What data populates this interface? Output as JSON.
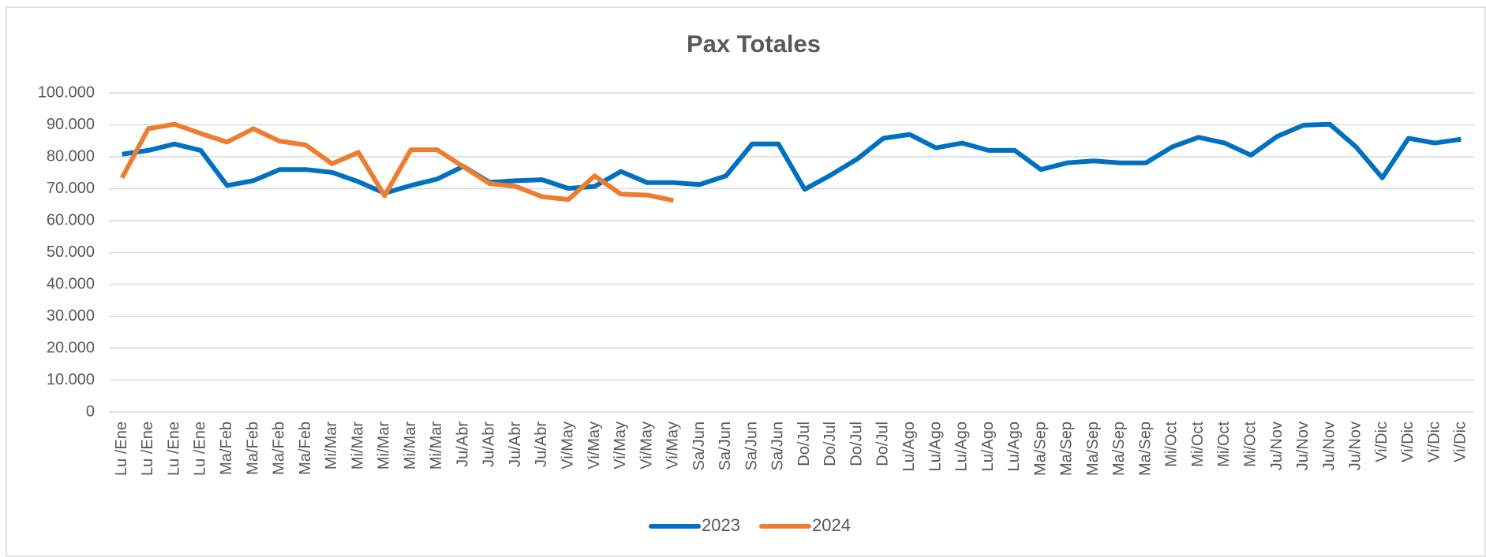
{
  "chart_data": {
    "type": "line",
    "title": "Pax Totales",
    "categories": [
      "Lu /Ene",
      "Lu /Ene",
      "Lu /Ene",
      "Lu /Ene",
      "Ma/Feb",
      "Ma/Feb",
      "Ma/Feb",
      "Ma/Feb",
      "Mi/Mar",
      "Mi/Mar",
      "Mi/Mar",
      "Mi/Mar",
      "Mi/Mar",
      "Ju/Abr",
      "Ju/Abr",
      "Ju/Abr",
      "Ju/Abr",
      "Vi/May",
      "Vi/May",
      "Vi/May",
      "Vi/May",
      "Vi/May",
      "Sa/Jun",
      "Sa/Jun",
      "Sa/Jun",
      "Sa/Jun",
      "Do/Jul",
      "Do/Jul",
      "Do/Jul",
      "Do/Jul",
      "Lu/Ago",
      "Lu/Ago",
      "Lu/Ago",
      "Lu/Ago",
      "Lu/Ago",
      "Ma/Sep",
      "Ma/Sep",
      "Ma/Sep",
      "Ma/Sep",
      "Ma/Sep",
      "Mi/Oct",
      "Mi/Oct",
      "Mi/Oct",
      "Mi/Oct",
      "Ju/Nov",
      "Ju/Nov",
      "Ju/Nov",
      "Ju/Nov",
      "Vi/Dic",
      "Vi/Dic",
      "Vi/Dic",
      "Vi/Dic"
    ],
    "series": [
      {
        "name": "2023",
        "color": "#0070c0",
        "values": [
          80800,
          82000,
          84000,
          82000,
          71000,
          72500,
          76000,
          76000,
          75100,
          72200,
          68600,
          71000,
          73000,
          77000,
          72000,
          72500,
          72800,
          70100,
          70700,
          75400,
          71900,
          71900,
          71300,
          74000,
          84000,
          84000,
          69800,
          74300,
          79300,
          85800,
          87000,
          82800,
          84300,
          82000,
          82000,
          76000,
          78100,
          78700,
          78100,
          78100,
          83100,
          86100,
          84300,
          80500,
          86400,
          89900,
          90200,
          83100,
          73400,
          85800,
          84300,
          85500
        ]
      },
      {
        "name": "2024",
        "color": "#ed7d31",
        "values": [
          73400,
          88800,
          90200,
          87300,
          84600,
          88800,
          84900,
          83700,
          77800,
          81400,
          67800,
          82200,
          82200,
          76900,
          71600,
          70700,
          67500,
          66600,
          74000,
          68300,
          68000,
          66300,
          null,
          null,
          null,
          null,
          null,
          null,
          null,
          null,
          null,
          null,
          null,
          null,
          null,
          null,
          null,
          null,
          null,
          null,
          null,
          null,
          null,
          null,
          null,
          null,
          null,
          null,
          null,
          null,
          null,
          null
        ]
      }
    ],
    "ylim": [
      0,
      100000
    ],
    "yticks": [
      0,
      {
        "value": 10000,
        "label": "10.000"
      },
      {
        "value": 20000,
        "label": "20.000"
      },
      {
        "value": 30000,
        "label": "30.000"
      },
      {
        "value": 40000,
        "label": "40.000"
      },
      {
        "value": 50000,
        "label": "50.000"
      },
      {
        "value": 60000,
        "label": "60.000"
      },
      {
        "value": 70000,
        "label": "70.000"
      },
      {
        "value": 80000,
        "label": "80.000"
      },
      {
        "value": 90000,
        "label": "90.000"
      },
      {
        "value": 100000,
        "label": "100.000"
      }
    ],
    "grid": true,
    "legend": "bottom"
  }
}
